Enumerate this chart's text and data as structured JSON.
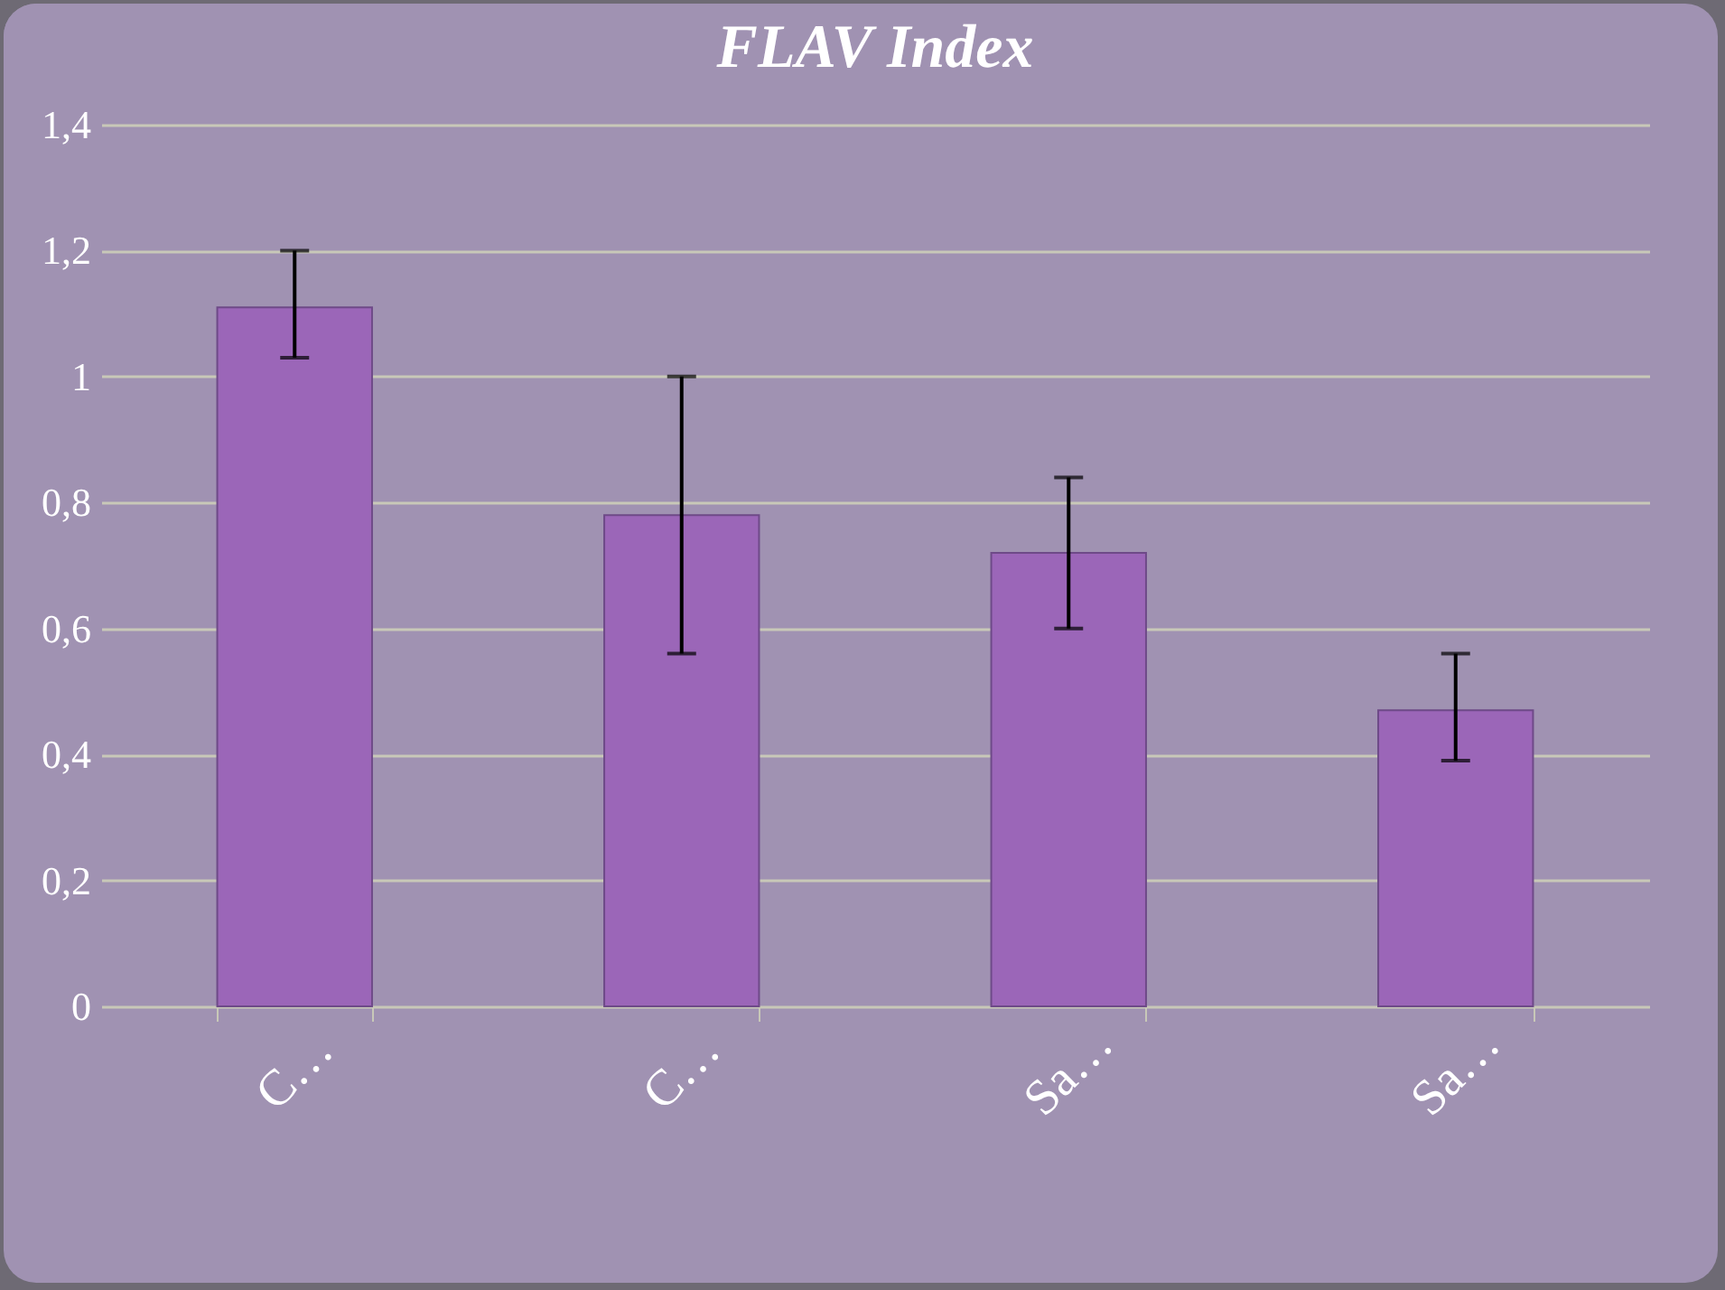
{
  "chart_data": {
    "type": "bar",
    "title": "FLAV Index",
    "categories": [
      "C…",
      "C…",
      "Sa…",
      "Sa…"
    ],
    "values": [
      1.11,
      0.78,
      0.72,
      0.47
    ],
    "errors": [
      [
        1.03,
        1.2
      ],
      [
        0.56,
        1.0
      ],
      [
        0.6,
        0.84
      ],
      [
        0.39,
        0.56
      ]
    ],
    "color": "#9b66b8",
    "ylim": [
      0,
      1.4
    ],
    "yticks": [
      {
        "value": 0,
        "label": "0"
      },
      {
        "value": 0.2,
        "label": "0,2"
      },
      {
        "value": 0.4,
        "label": "0,4"
      },
      {
        "value": 0.6,
        "label": "0,6"
      },
      {
        "value": 0.8,
        "label": "0,8"
      },
      {
        "value": 1,
        "label": "1"
      },
      {
        "value": 1.2,
        "label": "1,2"
      },
      {
        "value": 1.4,
        "label": "1,4"
      }
    ],
    "grid": "y"
  }
}
